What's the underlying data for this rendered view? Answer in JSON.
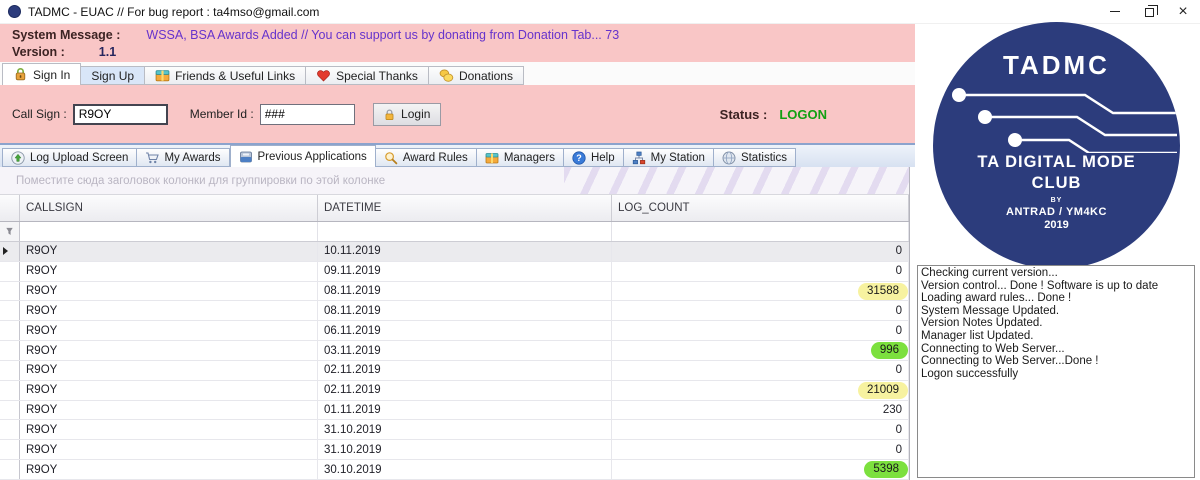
{
  "window": {
    "title": "TADMC - EUAC // For bug report : ta4mso@gmail.com",
    "close_glyph": "×"
  },
  "system_message": {
    "label": "System Message :",
    "value": "WSSA, BSA Awards Added // You can support us by donating from Donation Tab... 73",
    "version_label": "Version :",
    "version_value": "1.1"
  },
  "top_tabs": [
    {
      "label": "Sign In",
      "icon": "key-icon",
      "active": true
    },
    {
      "label": "Sign Up",
      "tint": true
    },
    {
      "label": "Friends & Useful Links",
      "icon": "gift-icon"
    },
    {
      "label": "Special Thanks",
      "icon": "heart-icon"
    },
    {
      "label": "Donations",
      "icon": "coins-icon"
    }
  ],
  "login_panel": {
    "call_sign_label": "Call Sign :",
    "call_sign_value": "R9OY",
    "member_id_label": "Member Id :",
    "member_id_value": "###",
    "login_button": "Login",
    "status_label": "Status :",
    "status_value": "LOGON"
  },
  "main_tabs": [
    {
      "label": "Log Upload Screen",
      "icon": "upload-icon"
    },
    {
      "label": "My Awards",
      "icon": "cart-icon"
    },
    {
      "label": "Previous Applications",
      "icon": "apps-icon",
      "active": true
    },
    {
      "label": "Award Rules",
      "icon": "search-icon"
    },
    {
      "label": "Managers",
      "icon": "managers-icon"
    },
    {
      "label": "Help",
      "icon": "help-icon"
    },
    {
      "label": "My Station",
      "icon": "network-icon"
    },
    {
      "label": "Statistics",
      "icon": "globe-icon"
    }
  ],
  "grid": {
    "group_panel_text": "Поместите сюда заголовок колонки для группировки по этой колонке",
    "columns": [
      "CALLSIGN",
      "DATETIME",
      "LOG_COUNT"
    ],
    "rows": [
      {
        "callsign": "R9OY",
        "datetime": "10.11.2019",
        "log_count": "0",
        "focused": true
      },
      {
        "callsign": "R9OY",
        "datetime": "09.11.2019",
        "log_count": "0"
      },
      {
        "callsign": "R9OY",
        "datetime": "08.11.2019",
        "log_count": "31588",
        "badge": "yellow"
      },
      {
        "callsign": "R9OY",
        "datetime": "08.11.2019",
        "log_count": "0"
      },
      {
        "callsign": "R9OY",
        "datetime": "06.11.2019",
        "log_count": "0"
      },
      {
        "callsign": "R9OY",
        "datetime": "03.11.2019",
        "log_count": "996",
        "badge": "green"
      },
      {
        "callsign": "R9OY",
        "datetime": "02.11.2019",
        "log_count": "0"
      },
      {
        "callsign": "R9OY",
        "datetime": "02.11.2019",
        "log_count": "21009",
        "badge": "yellow"
      },
      {
        "callsign": "R9OY",
        "datetime": "01.11.2019",
        "log_count": "230"
      },
      {
        "callsign": "R9OY",
        "datetime": "31.10.2019",
        "log_count": "0"
      },
      {
        "callsign": "R9OY",
        "datetime": "31.10.2019",
        "log_count": "0"
      },
      {
        "callsign": "R9OY",
        "datetime": "30.10.2019",
        "log_count": "5398",
        "badge": "green"
      }
    ]
  },
  "logo": {
    "title": "TADMC",
    "line1": "TA DIGITAL MODE",
    "line2": "CLUB",
    "by": "BY",
    "author": "ANTRAD / YM4KC",
    "year": "2019"
  },
  "log_output": {
    "lines": [
      "Checking current version...",
      "Version control... Done ! Software is up to date",
      "Loading award rules... Done !",
      "System Message Updated.",
      "Version Notes Updated.",
      "Manager list Updated.",
      "Connecting to Web Server...",
      "Connecting to Web Server...Done !",
      "Logon successfully"
    ]
  },
  "colors": {
    "panel_pink": "#f9c6c6",
    "logo_navy": "#2c3c7c",
    "status_green": "#12a012",
    "message_purple": "#6633cc",
    "badge_yellow": "#f7f2a0",
    "badge_green": "#7ce03e"
  }
}
